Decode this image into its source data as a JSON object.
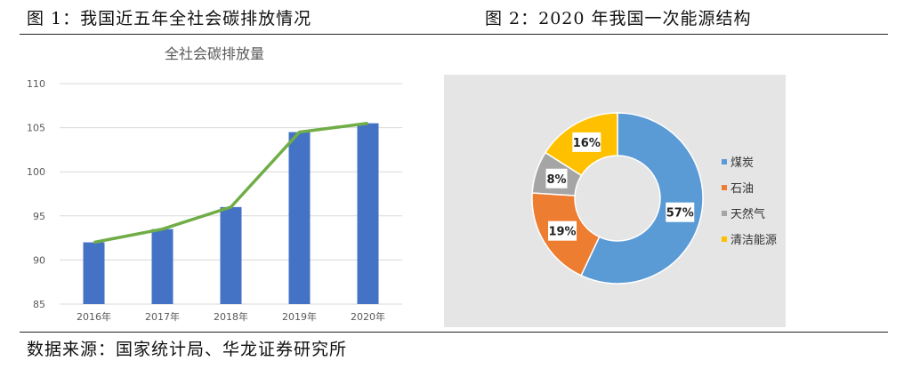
{
  "figure1": {
    "label": "图 1：我国近五年全社会碳排放情况"
  },
  "figure2": {
    "label": "图 2：2020 年我国一次能源结构"
  },
  "source": "数据来源：国家统计局、华龙证券研究所",
  "chart_data": [
    {
      "type": "bar",
      "title": "全社会碳排放量",
      "categories": [
        "2016年",
        "2017年",
        "2018年",
        "2019年",
        "2020年"
      ],
      "series": [
        {
          "type": "bar",
          "values": [
            92,
            93.5,
            96,
            104.5,
            105.5
          ]
        },
        {
          "type": "line",
          "values": [
            92,
            93.5,
            96,
            104.5,
            105.5
          ]
        }
      ],
      "ylim": [
        85,
        110
      ],
      "yticks": [
        85,
        90,
        95,
        100,
        105,
        110
      ],
      "grid": true,
      "colors": {
        "bar": "#4472c4",
        "line": "#70ad47"
      }
    },
    {
      "type": "pie",
      "variant": "donut",
      "slices": [
        {
          "label": "煤炭",
          "value": 57,
          "display": "57%",
          "color": "#5b9bd5"
        },
        {
          "label": "石油",
          "value": 19,
          "display": "19%",
          "color": "#ed7d31"
        },
        {
          "label": "天然气",
          "value": 8,
          "display": "8%",
          "color": "#a5a5a5"
        },
        {
          "label": "清洁能源",
          "value": 16,
          "display": "16%",
          "color": "#ffc000"
        }
      ],
      "legend": "right"
    }
  ]
}
